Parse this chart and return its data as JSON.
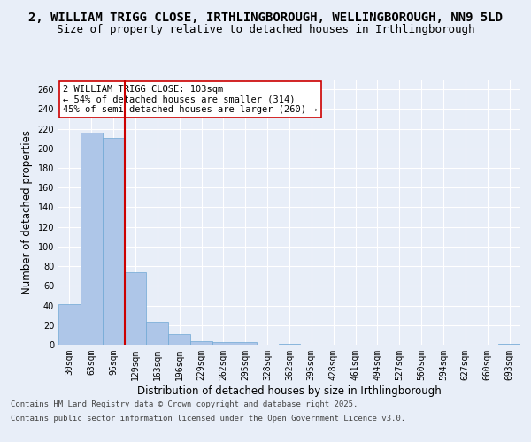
{
  "title_line1": "2, WILLIAM TRIGG CLOSE, IRTHLINGBOROUGH, WELLINGBOROUGH, NN9 5LD",
  "title_line2": "Size of property relative to detached houses in Irthlingborough",
  "xlabel": "Distribution of detached houses by size in Irthlingborough",
  "ylabel": "Number of detached properties",
  "categories": [
    "30sqm",
    "63sqm",
    "96sqm",
    "129sqm",
    "163sqm",
    "196sqm",
    "229sqm",
    "262sqm",
    "295sqm",
    "328sqm",
    "362sqm",
    "395sqm",
    "428sqm",
    "461sqm",
    "494sqm",
    "527sqm",
    "560sqm",
    "594sqm",
    "627sqm",
    "660sqm",
    "693sqm"
  ],
  "values": [
    41,
    216,
    211,
    74,
    23,
    11,
    4,
    3,
    3,
    0,
    1,
    0,
    0,
    0,
    0,
    0,
    0,
    0,
    0,
    0,
    1
  ],
  "bar_color": "#aec6e8",
  "bar_edge_color": "#6fa8d4",
  "vline_x": 2,
  "vline_color": "#cc0000",
  "annotation_text": "2 WILLIAM TRIGG CLOSE: 103sqm\n← 54% of detached houses are smaller (314)\n45% of semi-detached houses are larger (260) →",
  "annotation_box_color": "#ffffff",
  "annotation_box_edge": "#cc0000",
  "ylim": [
    0,
    270
  ],
  "yticks": [
    0,
    20,
    40,
    60,
    80,
    100,
    120,
    140,
    160,
    180,
    200,
    220,
    240,
    260
  ],
  "background_color": "#e8eef8",
  "plot_bg_color": "#e8eef8",
  "grid_color": "#ffffff",
  "footer_line1": "Contains HM Land Registry data © Crown copyright and database right 2025.",
  "footer_line2": "Contains public sector information licensed under the Open Government Licence v3.0.",
  "title_fontsize": 10,
  "subtitle_fontsize": 9,
  "tick_fontsize": 7,
  "label_fontsize": 8.5,
  "footer_fontsize": 6.5
}
